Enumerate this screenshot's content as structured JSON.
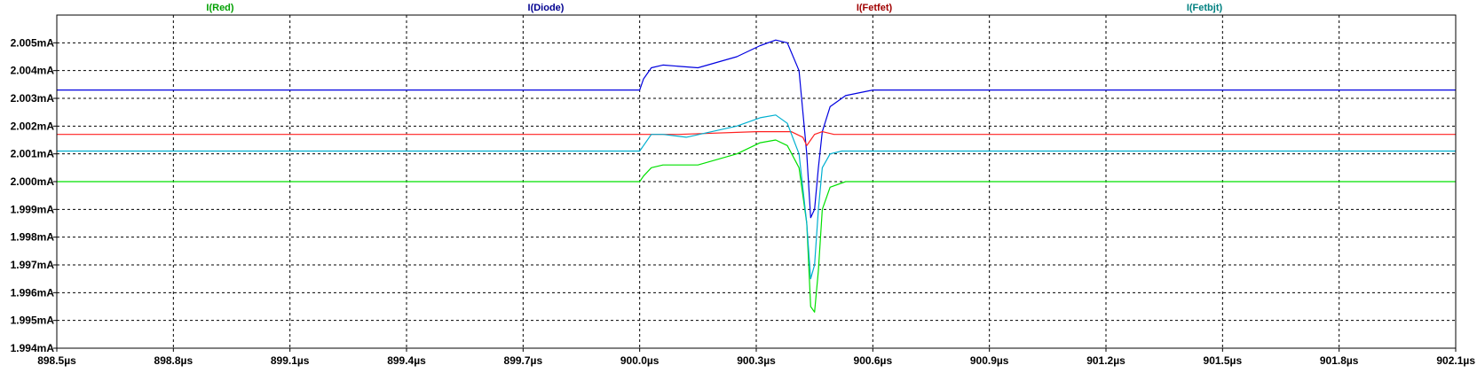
{
  "chart_data": {
    "type": "line",
    "x_unit": "µs",
    "y_unit": "mA",
    "xlim": [
      898.5,
      902.1
    ],
    "ylim": [
      1.994,
      2.006
    ],
    "grid": true,
    "x_tick_labels": [
      "898.5µs",
      "898.8µs",
      "899.1µs",
      "899.4µs",
      "899.7µs",
      "900.0µs",
      "900.3µs",
      "900.6µs",
      "900.9µs",
      "901.2µs",
      "901.5µs",
      "901.8µs",
      "902.1µs"
    ],
    "x_tick_values": [
      898.5,
      898.8,
      899.1,
      899.4,
      899.7,
      900.0,
      900.3,
      900.6,
      900.9,
      901.2,
      901.5,
      901.8,
      902.1
    ],
    "y_tick_labels": [
      "1.994mA",
      "1.995mA",
      "1.996mA",
      "1.997mA",
      "1.998mA",
      "1.999mA",
      "2.000mA",
      "2.001mA",
      "2.002mA",
      "2.003mA",
      "2.004mA",
      "2.005mA"
    ],
    "y_tick_values": [
      1.994,
      1.995,
      1.996,
      1.997,
      1.998,
      1.999,
      2.0,
      2.001,
      2.002,
      2.003,
      2.004,
      2.005
    ],
    "legend_position": "top",
    "series": [
      {
        "name": "I(Red)",
        "color": "#00a000",
        "line_color": "#00e000",
        "x": [
          898.5,
          900.0,
          900.01,
          900.03,
          900.06,
          900.15,
          900.25,
          900.31,
          900.35,
          900.38,
          900.41,
          900.43,
          900.44,
          900.45,
          900.46,
          900.47,
          900.49,
          900.53,
          900.6,
          902.1
        ],
        "y": [
          2.0,
          2.0,
          2.0002,
          2.0005,
          2.0006,
          2.0006,
          2.001,
          2.0014,
          2.0015,
          2.0013,
          2.0005,
          1.9985,
          1.9955,
          1.9953,
          1.9968,
          1.999,
          1.9998,
          2.0,
          2.0,
          2.0
        ]
      },
      {
        "name": "I(Diode)",
        "color": "#000090",
        "line_color": "#0000e0",
        "x": [
          898.5,
          900.0,
          900.01,
          900.03,
          900.06,
          900.15,
          900.25,
          900.31,
          900.35,
          900.38,
          900.41,
          900.43,
          900.44,
          900.45,
          900.46,
          900.47,
          900.49,
          900.53,
          900.6,
          902.1
        ],
        "y": [
          2.0033,
          2.0033,
          2.0037,
          2.0041,
          2.0042,
          2.0041,
          2.0045,
          2.0049,
          2.0051,
          2.005,
          2.004,
          2.001,
          1.9987,
          1.999,
          2.0005,
          2.0018,
          2.0027,
          2.0031,
          2.0033,
          2.0033
        ]
      },
      {
        "name": "I(Fetfet)",
        "color": "#a00000",
        "line_color": "#ff2020",
        "x": [
          898.5,
          900.0,
          900.1,
          900.3,
          900.39,
          900.42,
          900.43,
          900.44,
          900.45,
          900.47,
          900.5,
          902.1
        ],
        "y": [
          2.0017,
          2.0017,
          2.0017,
          2.0018,
          2.0018,
          2.0016,
          2.0013,
          2.0015,
          2.0017,
          2.0018,
          2.0017,
          2.0017
        ]
      },
      {
        "name": "I(Fetbjt)",
        "color": "#008080",
        "line_color": "#00b0d0",
        "x": [
          898.5,
          900.0,
          900.01,
          900.03,
          900.06,
          900.12,
          900.25,
          900.31,
          900.35,
          900.38,
          900.41,
          900.43,
          900.44,
          900.45,
          900.46,
          900.47,
          900.49,
          900.52,
          902.1
        ],
        "y": [
          2.0011,
          2.0011,
          2.0013,
          2.0017,
          2.0017,
          2.0016,
          2.002,
          2.0023,
          2.0024,
          2.0021,
          2.001,
          1.9985,
          1.9965,
          1.997,
          1.999,
          2.0005,
          2.001,
          2.0011,
          2.0011
        ]
      }
    ]
  }
}
